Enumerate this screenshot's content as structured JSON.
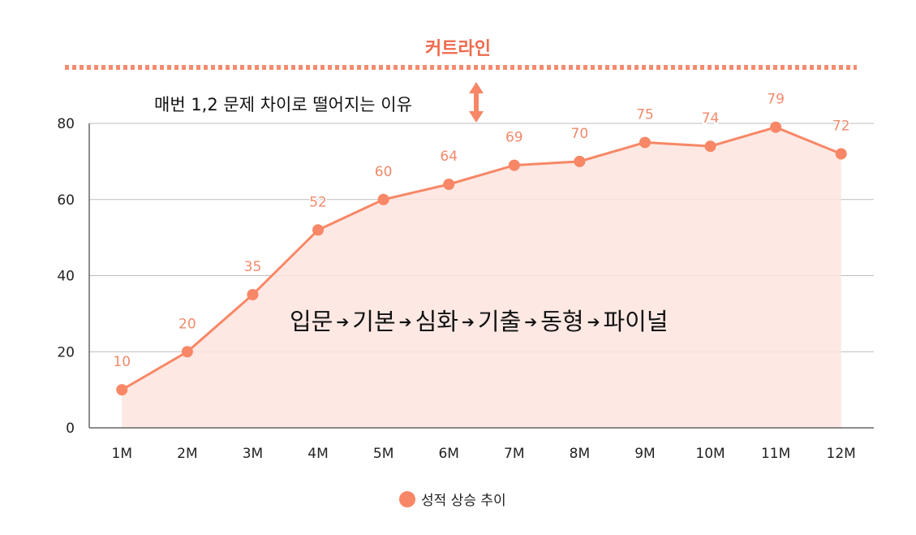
{
  "annotations": {
    "cutline_label": "커트라인",
    "reason_text": "매번 1,2 문제 차이로 떨어지는 이유",
    "stages": [
      "입문",
      "기본",
      "심화",
      "기출",
      "동형",
      "파이널"
    ],
    "stage_arrow": "➔",
    "double_arrow_icon": "double-vertical-arrow"
  },
  "colors": {
    "line": "#f78766",
    "fill": "#fde4de",
    "label": "#f08a6c",
    "cutline": "#f58b6e",
    "grid": "#bdbdbd",
    "axis": "#666666"
  },
  "chart_data": {
    "type": "area",
    "title": "",
    "xlabel": "",
    "ylabel": "",
    "categories": [
      "1M",
      "2M",
      "3M",
      "4M",
      "5M",
      "6M",
      "7M",
      "8M",
      "9M",
      "10M",
      "11M",
      "12M"
    ],
    "series": [
      {
        "name": "성적 상승 추이",
        "values": [
          10,
          20,
          35,
          52,
          60,
          64,
          69,
          70,
          75,
          74,
          79,
          72
        ]
      }
    ],
    "ylim": [
      0,
      80
    ],
    "yticks": [
      0,
      20,
      40,
      60,
      80
    ],
    "grid": true,
    "data_labels": true,
    "legend": {
      "position": "bottom-center",
      "entries": [
        "성적 상승 추이"
      ]
    }
  }
}
